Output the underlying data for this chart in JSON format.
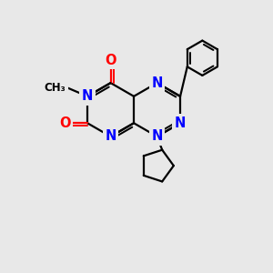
{
  "bg_color": "#e8e8e8",
  "bond_color": "#000000",
  "N_color": "#0000ff",
  "O_color": "#ff0000",
  "lw": 1.6,
  "fs": 10.5,
  "xlim": [
    0,
    10
  ],
  "ylim": [
    0,
    10
  ],
  "b": 1.0
}
